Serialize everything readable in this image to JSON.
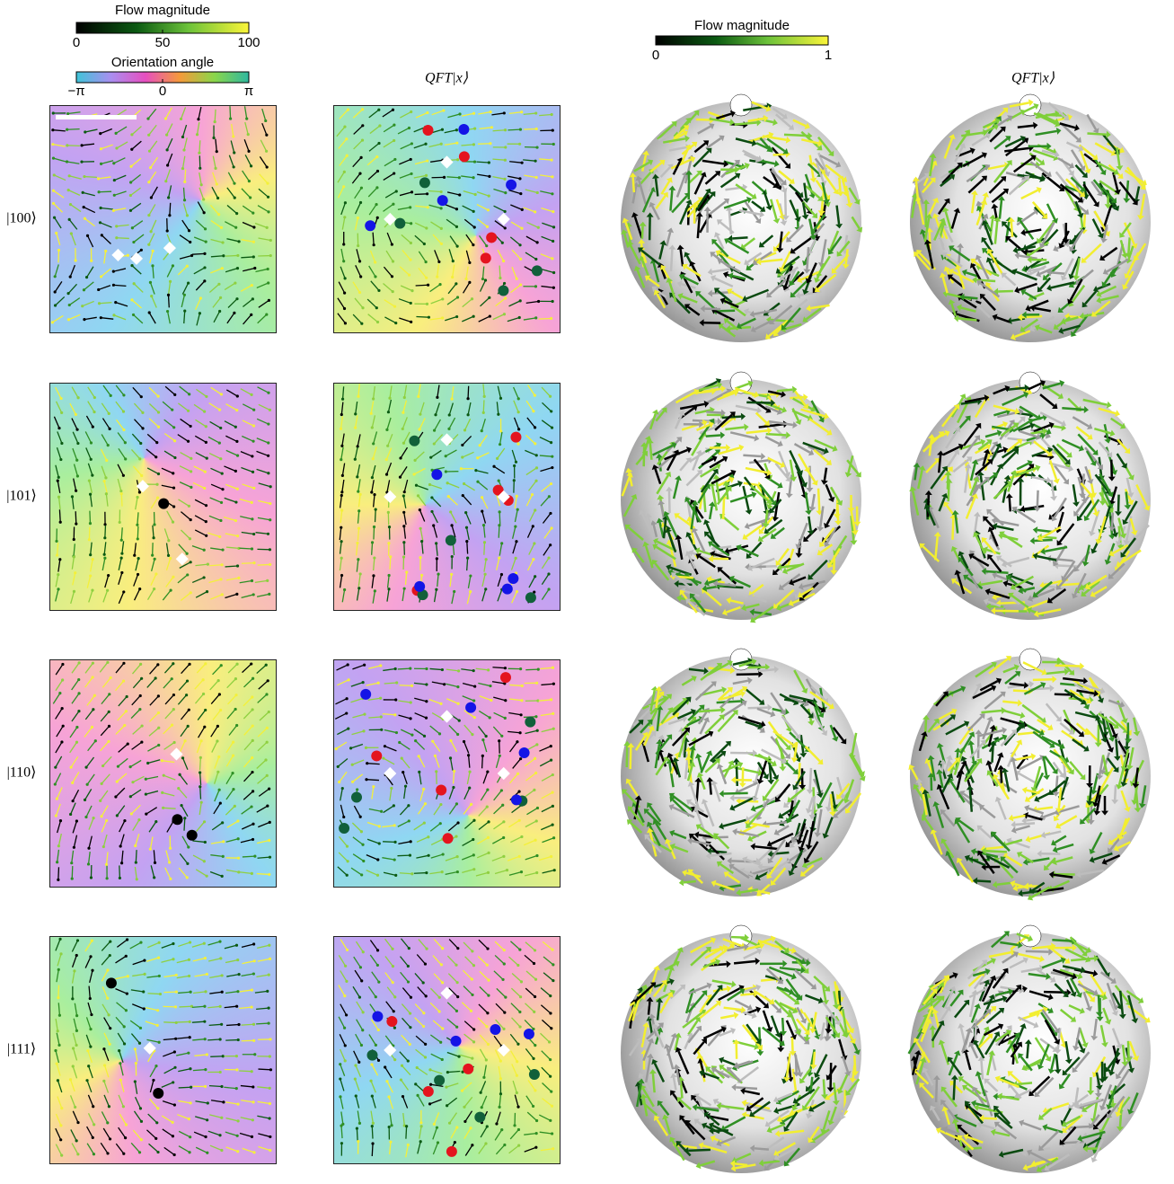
{
  "colorbars": [
    {
      "title": "Flow magnitude",
      "ticks": [
        0,
        50,
        100
      ]
    },
    {
      "title": "Orientation angle",
      "ticks": [
        "−π",
        "0",
        "π"
      ]
    },
    {
      "title": "Flow magnitude",
      "ticks": [
        0,
        1
      ]
    }
  ],
  "column_titles": [
    "QFT|x⟩",
    "QFT|x⟩"
  ],
  "row_labels": [
    "|100⟩",
    "|101⟩",
    "|110⟩",
    "|111⟩"
  ]
}
